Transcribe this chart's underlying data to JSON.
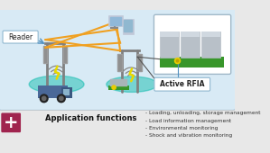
{
  "bg_color": "#d8eaf5",
  "outer_bg": "#e8e8e8",
  "title_text": "Application functions",
  "bullet_lines": [
    "- Loading, unloading, storage management",
    "- Load information management",
    "- Environmental monitoring",
    "- Shock and vibration monitoring"
  ],
  "reader_label": "Reader",
  "active_rfia_label": "Active RFIA",
  "plus_color": "#a0244e",
  "plus_symbol": "+",
  "teal_color": "#00b8a8",
  "signal_color": "#888888",
  "lightning_color": "#e8d800",
  "orange_color": "#f0a020",
  "arrow_color": "#5090c0",
  "pallet_green": "#38962a",
  "box_color": "#b0b8c4",
  "truck_color": "#4a6898",
  "dark_line": "#555555",
  "white": "#ffffff",
  "label_border": "#90b8d0"
}
